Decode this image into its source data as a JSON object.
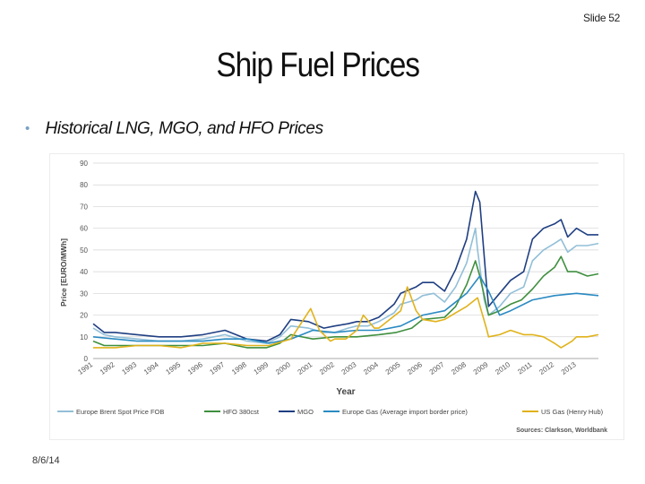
{
  "slide_number": "Slide 52",
  "title": "Ship Fuel Prices",
  "bullet": "Historical LNG, MGO, and HFO  Prices",
  "footer_date": "8/6/14",
  "chart_data": {
    "type": "line",
    "title": "",
    "xlabel": "Year",
    "ylabel": "Price [EURO/MWh]",
    "ylim": [
      0,
      90
    ],
    "yticks": [
      0,
      10,
      20,
      30,
      40,
      50,
      60,
      70,
      80,
      90
    ],
    "xlim": [
      1991,
      2014
    ],
    "xticks": [
      "1991",
      "1992",
      "1993",
      "1994",
      "1995",
      "1996",
      "1997",
      "1998",
      "1999",
      "2000",
      "2001",
      "2002",
      "2003",
      "2004",
      "2005",
      "2006",
      "2007",
      "2008",
      "2009",
      "2010",
      "2011",
      "2012",
      "2013"
    ],
    "grid": true,
    "legend_position": "bottom",
    "source": "Sources: Clarkson, Worldbank",
    "series": [
      {
        "name": "Europe Brent Spot Price FOB",
        "color": "#92bfd8",
        "x": [
          1991,
          1991.5,
          1992,
          1993,
          1994,
          1995,
          1996,
          1997,
          1998,
          1998.9,
          1999.5,
          2000,
          2000.8,
          2001.5,
          2002,
          2002.6,
          2003,
          2003.5,
          2004,
          2004.7,
          2005,
          2005.7,
          2006,
          2006.5,
          2007,
          2007.5,
          2008,
          2008.4,
          2008.5,
          2008.8,
          2009,
          2009.5,
          2010,
          2010.6,
          2011,
          2011.5,
          2012,
          2012.3,
          2012.6,
          2013,
          2013.5,
          2014
        ],
        "y": [
          14,
          11,
          10,
          9,
          8,
          8,
          9,
          11,
          8,
          7,
          10,
          15,
          14,
          12,
          12,
          14,
          15,
          15,
          17,
          21,
          25,
          27,
          29,
          30,
          26,
          33,
          44,
          60,
          50,
          27,
          20,
          24,
          30,
          33,
          45,
          50,
          53,
          55,
          49,
          52,
          52,
          53
        ]
      },
      {
        "name": "HFO 380cst",
        "color": "#3f8f3f",
        "x": [
          1991,
          1991.5,
          1992,
          1993,
          1994,
          1995,
          1996,
          1997,
          1998,
          1998.9,
          1999.5,
          2000,
          2001,
          2002,
          2003,
          2004,
          2004.8,
          2005.5,
          2006,
          2007,
          2007.5,
          2008,
          2008.4,
          2008.6,
          2009,
          2009.5,
          2010,
          2010.5,
          2011,
          2011.5,
          2012,
          2012.3,
          2012.6,
          2013,
          2013.5,
          2014
        ],
        "y": [
          8,
          6,
          6,
          6,
          6,
          6,
          6,
          7,
          5,
          5,
          7,
          11,
          9,
          10,
          10,
          11,
          12,
          14,
          18,
          19,
          24,
          34,
          45,
          38,
          20,
          22,
          25,
          27,
          32,
          38,
          42,
          47,
          40,
          40,
          38,
          39
        ]
      },
      {
        "name": "MGO",
        "color": "#1f3f82",
        "x": [
          1991,
          1991.5,
          1992,
          1993,
          1994,
          1995,
          1996,
          1997,
          1998,
          1998.9,
          1999.5,
          2000,
          2000.8,
          2001.5,
          2002,
          2002.6,
          2003,
          2003.5,
          2004,
          2004.7,
          2005,
          2005.7,
          2006,
          2006.5,
          2007,
          2007.5,
          2008,
          2008.4,
          2008.6,
          2008.9,
          2009,
          2009.5,
          2010,
          2010.6,
          2011,
          2011.5,
          2012,
          2012.3,
          2012.6,
          2013,
          2013.5,
          2014
        ],
        "y": [
          16,
          12,
          12,
          11,
          10,
          10,
          11,
          13,
          9,
          8,
          11,
          18,
          17,
          14,
          15,
          16,
          17,
          17,
          19,
          25,
          30,
          33,
          35,
          35,
          31,
          41,
          55,
          77,
          72,
          35,
          24,
          30,
          36,
          40,
          55,
          60,
          62,
          64,
          56,
          60,
          57,
          57
        ]
      },
      {
        "name": "Europe Gas (Average import border price)",
        "color": "#2a8ac2",
        "x": [
          1991,
          1992,
          1993,
          1994,
          1995,
          1996,
          1997,
          1998,
          1999,
          2000,
          2001,
          2002,
          2003,
          2004,
          2005,
          2006,
          2007,
          2008,
          2008.6,
          2009,
          2009.5,
          2010,
          2011,
          2012,
          2013,
          2014
        ],
        "y": [
          10,
          9,
          8,
          8,
          8,
          8,
          9,
          9,
          7,
          9,
          13,
          12,
          13,
          13,
          15,
          20,
          22,
          30,
          38,
          31,
          20,
          22,
          27,
          29,
          30,
          29
        ]
      },
      {
        "name": "US Gas (Henry Hub)",
        "color": "#e0b21a",
        "x": [
          1991,
          1992,
          1993,
          1994,
          1995,
          1996,
          1997,
          1998,
          1999,
          2000,
          2000.9,
          2001.3,
          2001.8,
          2002,
          2002.5,
          2003,
          2003.3,
          2003.8,
          2004,
          2005,
          2005.3,
          2005.7,
          2006,
          2006.6,
          2007,
          2007.5,
          2008,
          2008.5,
          2008.9,
          2009,
          2009.5,
          2010,
          2010.6,
          2011,
          2011.5,
          2012,
          2012.3,
          2012.8,
          2013,
          2013.5,
          2014
        ],
        "y": [
          5,
          5,
          6,
          6,
          5,
          7,
          7,
          6,
          6,
          9,
          23,
          13,
          8,
          9,
          9,
          13,
          20,
          14,
          14,
          22,
          33,
          22,
          18,
          17,
          18,
          21,
          24,
          28,
          14,
          10,
          11,
          13,
          11,
          11,
          10,
          7,
          5,
          8,
          10,
          10,
          11
        ]
      }
    ]
  }
}
